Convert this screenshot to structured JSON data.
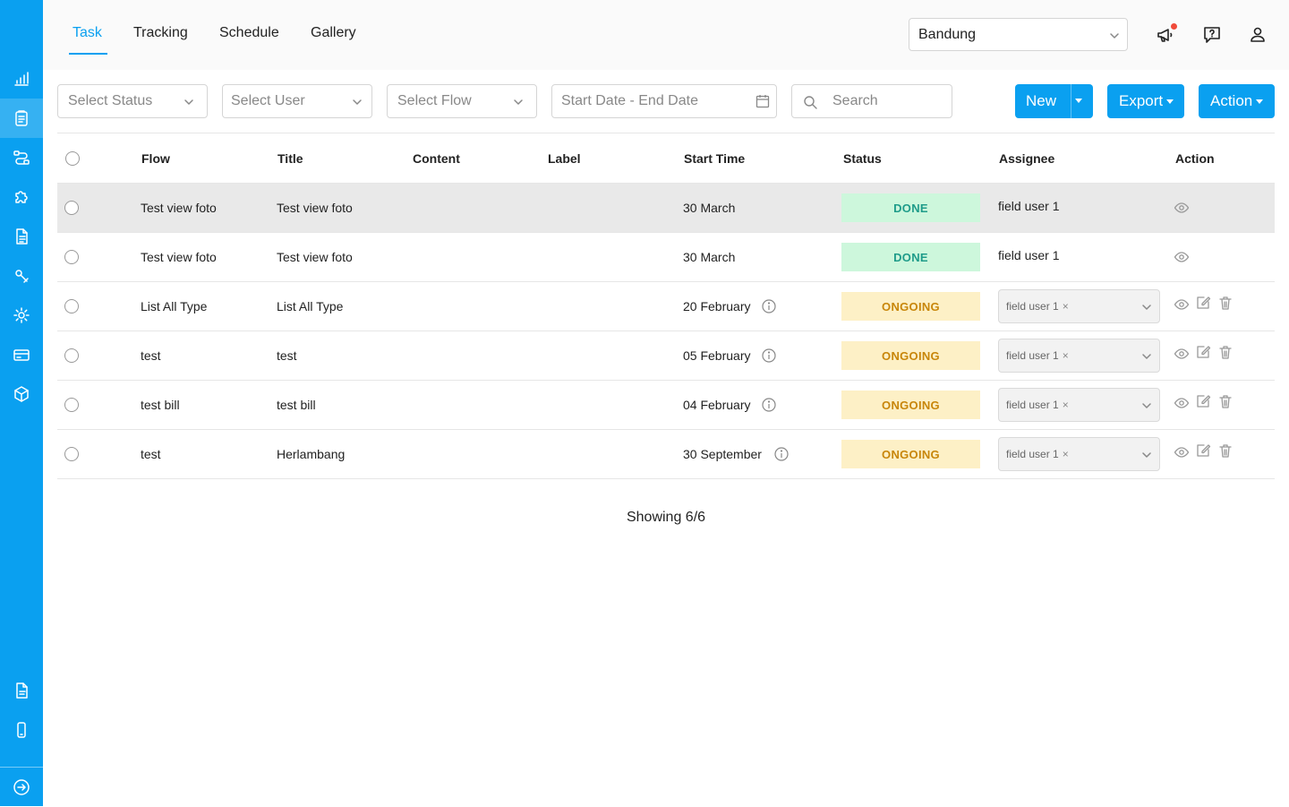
{
  "tabs": [
    {
      "label": "Task",
      "active": true
    },
    {
      "label": "Tracking",
      "active": false
    },
    {
      "label": "Schedule",
      "active": false
    },
    {
      "label": "Gallery",
      "active": false
    }
  ],
  "location_select": {
    "value": "Bandung"
  },
  "header_icons": [
    "megaphone-icon",
    "help-chat-icon",
    "user-icon"
  ],
  "sidebar": {
    "items": [
      "chart-icon",
      "task-icon",
      "flow-icon",
      "puzzle-icon",
      "document-icon",
      "tools-icon",
      "gear-icon",
      "card-icon",
      "box-icon"
    ],
    "bottom_items": [
      "file-icon",
      "mobile-icon",
      "logout-icon"
    ]
  },
  "filters": {
    "status_placeholder": "Select Status",
    "user_placeholder": "Select User",
    "flow_placeholder": "Select Flow",
    "date_placeholder": "Start Date - End Date",
    "search_placeholder": "Search"
  },
  "buttons": {
    "new": "New",
    "export": "Export",
    "action": "Action"
  },
  "columns": [
    "Flow",
    "Title",
    "Content",
    "Label",
    "Start Time",
    "Status",
    "Assignee",
    "Action"
  ],
  "rows": [
    {
      "flow": "Test view foto",
      "title": "Test view foto",
      "content": "",
      "label": "",
      "start_time": "30 March",
      "has_info": false,
      "status": "DONE",
      "assignee": "field user 1",
      "assignee_editable": false,
      "actions": [
        "view"
      ]
    },
    {
      "flow": "Test view foto",
      "title": "Test view foto",
      "content": "",
      "label": "",
      "start_time": "30 March",
      "has_info": false,
      "status": "DONE",
      "assignee": "field user 1",
      "assignee_editable": false,
      "actions": [
        "view"
      ]
    },
    {
      "flow": "List All Type",
      "title": "List All Type",
      "content": "",
      "label": "",
      "start_time": "20 February",
      "has_info": true,
      "status": "ONGOING",
      "assignee": "field user 1",
      "assignee_editable": true,
      "actions": [
        "view",
        "edit",
        "delete"
      ]
    },
    {
      "flow": "test",
      "title": "test",
      "content": "",
      "label": "",
      "start_time": "05 February",
      "has_info": true,
      "status": "ONGOING",
      "assignee": "field user 1",
      "assignee_editable": true,
      "actions": [
        "view",
        "edit",
        "delete"
      ]
    },
    {
      "flow": "test bill",
      "title": "test bill",
      "content": "",
      "label": "",
      "start_time": "04 February",
      "has_info": true,
      "status": "ONGOING",
      "assignee": "field user 1",
      "assignee_editable": true,
      "actions": [
        "view",
        "edit",
        "delete"
      ]
    },
    {
      "flow": "test",
      "title": "Herlambang",
      "content": "",
      "label": "",
      "start_time": "30 September",
      "has_info": true,
      "status": "ONGOING",
      "assignee": "field user 1",
      "assignee_editable": true,
      "actions": [
        "view",
        "edit",
        "delete"
      ]
    }
  ],
  "status_colors": {
    "DONE": {
      "bg": "#cdf7dc",
      "fg": "#1f9c8a"
    },
    "ONGOING": {
      "bg": "#fdf0c6",
      "fg": "#c8860a"
    }
  },
  "accent_color": "#0aa0f0",
  "footer": {
    "showing": "Showing 6/6"
  }
}
